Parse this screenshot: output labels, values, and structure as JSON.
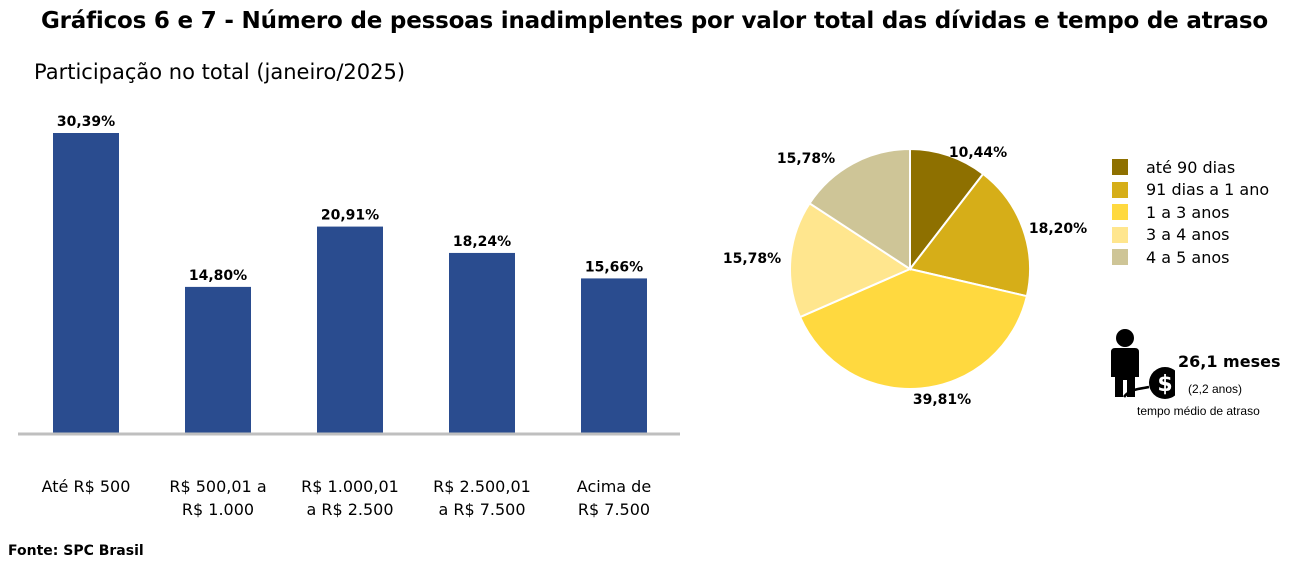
{
  "title": "Gráficos 6 e 7 - Número de pessoas inadimplentes por valor total das dívidas e tempo de atraso",
  "subtitle": "Participação no total (janeiro/2025)",
  "source": "Fonte: SPC Brasil",
  "chart_data": [
    {
      "type": "bar",
      "categories": [
        [
          "Até R$ 500"
        ],
        [
          "R$ 500,01 a",
          "R$ 1.000"
        ],
        [
          "R$ 1.000,01",
          "a R$ 2.500"
        ],
        [
          "R$ 2.500,01",
          "a R$ 7.500"
        ],
        [
          "Acima de",
          "R$ 7.500"
        ]
      ],
      "values": [
        30.39,
        14.8,
        20.91,
        18.24,
        15.66
      ],
      "value_labels": [
        "30,39%",
        "14,80%",
        "20,91%",
        "18,24%",
        "15,66%"
      ],
      "color": "#2A4C8F",
      "ylim": [
        0,
        35
      ],
      "grid": false
    },
    {
      "type": "pie",
      "labels": [
        "até 90 dias",
        "91 dias a 1 ano",
        "1 a 3 anos",
        "3 a 4 anos",
        "4 a 5 anos"
      ],
      "values": [
        10.44,
        18.2,
        39.81,
        15.78,
        15.78
      ],
      "value_labels": [
        "10,44%",
        "18,20%",
        "39,81%",
        "15,78%",
        "15,78%"
      ],
      "colors": [
        "#8E7000",
        "#D6AE18",
        "#FFD93F",
        "#FFE68E",
        "#CEC597"
      ],
      "legend_position": "right"
    }
  ],
  "delay_info": {
    "value": "26,1 meses",
    "years": "(2,2 anos)",
    "caption": "tempo médio de atraso",
    "icon": "person-with-money-ball-icon"
  }
}
